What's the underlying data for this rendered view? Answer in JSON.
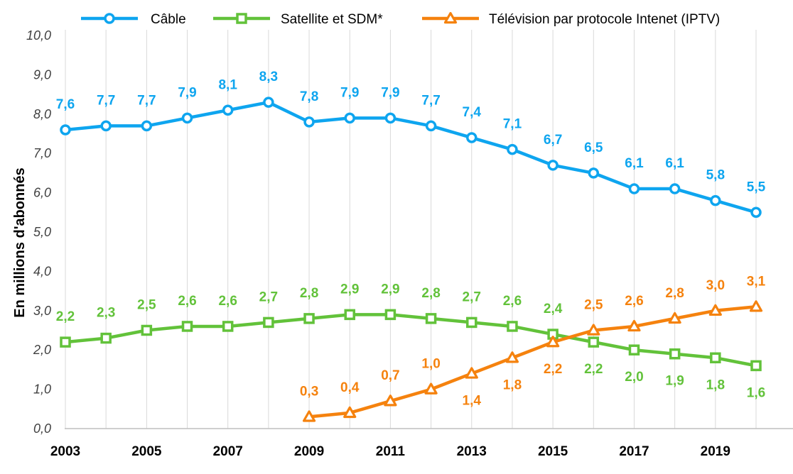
{
  "chart_data": {
    "type": "line",
    "title": "",
    "xlabel": "",
    "ylabel": "En millions d'abonnés",
    "x": [
      2003,
      2004,
      2005,
      2006,
      2007,
      2008,
      2009,
      2010,
      2011,
      2012,
      2013,
      2014,
      2015,
      2016,
      2017,
      2018,
      2019,
      2020
    ],
    "x_tick_labels": [
      "2003",
      "2005",
      "2007",
      "2009",
      "2011",
      "2013",
      "2015",
      "2017",
      "2019"
    ],
    "y_tick_labels": [
      "0,0",
      "1,0",
      "2,0",
      "3,0",
      "4,0",
      "5,0",
      "6,0",
      "7,0",
      "8,0",
      "9,0",
      "10,0"
    ],
    "ylim": [
      0,
      10
    ],
    "grid": "vertical",
    "legend_position": "top",
    "series": [
      {
        "name": "Câble",
        "color": "#0EA5EF",
        "marker": "circle",
        "x": [
          2003,
          2004,
          2005,
          2006,
          2007,
          2008,
          2009,
          2010,
          2011,
          2012,
          2013,
          2014,
          2015,
          2016,
          2017,
          2018,
          2019,
          2020
        ],
        "values": [
          7.6,
          7.7,
          7.7,
          7.9,
          8.1,
          8.3,
          7.8,
          7.9,
          7.9,
          7.7,
          7.4,
          7.1,
          6.7,
          6.5,
          6.1,
          6.1,
          5.8,
          5.5
        ],
        "labels": [
          "7,6",
          "7,7",
          "7,7",
          "7,9",
          "8,1",
          "8,3",
          "7,8",
          "7,9",
          "7,9",
          "7,7",
          "7,4",
          "7,1",
          "6,7",
          "6,5",
          "6,1",
          "6,1",
          "5,8",
          "5,5"
        ],
        "label_position": [
          "above",
          "above",
          "above",
          "above",
          "above",
          "above",
          "above",
          "above",
          "above",
          "above",
          "above",
          "above",
          "above",
          "above",
          "above",
          "above",
          "above",
          "above"
        ]
      },
      {
        "name": "Satellite et SDM*",
        "color": "#62C23A",
        "marker": "square",
        "x": [
          2003,
          2004,
          2005,
          2006,
          2007,
          2008,
          2009,
          2010,
          2011,
          2012,
          2013,
          2014,
          2015,
          2016,
          2017,
          2018,
          2019,
          2020
        ],
        "values": [
          2.2,
          2.3,
          2.5,
          2.6,
          2.6,
          2.7,
          2.8,
          2.9,
          2.9,
          2.8,
          2.7,
          2.6,
          2.4,
          2.2,
          2.0,
          1.9,
          1.8,
          1.6
        ],
        "labels": [
          "2,2",
          "2,3",
          "2,5",
          "2,6",
          "2,6",
          "2,7",
          "2,8",
          "2,9",
          "2,9",
          "2,8",
          "2,7",
          "2,6",
          "2,4",
          "2,2",
          "2,0",
          "1,9",
          "1,8",
          "1,6"
        ],
        "label_position": [
          "above",
          "above",
          "above",
          "above",
          "above",
          "above",
          "above",
          "above",
          "above",
          "above",
          "above",
          "above",
          "above",
          "below",
          "below",
          "below",
          "below",
          "below"
        ]
      },
      {
        "name": "Télévision par protocole Intenet (IPTV)",
        "color": "#F5820E",
        "marker": "triangle",
        "x": [
          2009,
          2010,
          2011,
          2012,
          2013,
          2014,
          2015,
          2016,
          2017,
          2018,
          2019,
          2020
        ],
        "values": [
          0.3,
          0.4,
          0.7,
          1.0,
          1.4,
          1.8,
          2.2,
          2.5,
          2.6,
          2.8,
          3.0,
          3.1
        ],
        "labels": [
          "0,3",
          "0,4",
          "0,7",
          "1,0",
          "1,4",
          "1,8",
          "2,2",
          "2,5",
          "2,6",
          "2,8",
          "3,0",
          "3,1"
        ],
        "label_position": [
          "above",
          "above",
          "above",
          "above",
          "below",
          "below",
          "below",
          "above",
          "above",
          "above",
          "above",
          "above"
        ]
      }
    ]
  }
}
